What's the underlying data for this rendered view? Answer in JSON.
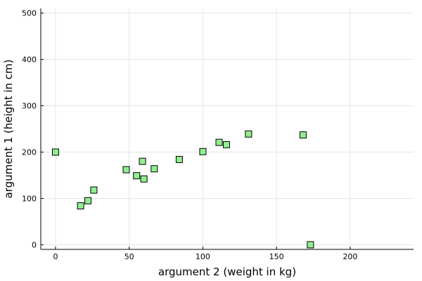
{
  "chart_data": {
    "type": "scatter",
    "xlabel": "argument 2 (weight in kg)",
    "ylabel": "argument 1 (height in cm)",
    "xlim": [
      -10,
      243
    ],
    "ylim": [
      -10,
      510
    ],
    "xticks": [
      0,
      50,
      100,
      150,
      200
    ],
    "yticks": [
      0,
      100,
      200,
      300,
      400,
      500
    ],
    "grid": true,
    "legend": "none",
    "marker": "square",
    "marker_color": "#90ee90",
    "series": [
      {
        "points": [
          {
            "x": 0,
            "y": 200
          },
          {
            "x": 17,
            "y": 84
          },
          {
            "x": 22,
            "y": 95
          },
          {
            "x": 26,
            "y": 118
          },
          {
            "x": 48,
            "y": 162
          },
          {
            "x": 55,
            "y": 149
          },
          {
            "x": 59,
            "y": 180
          },
          {
            "x": 60,
            "y": 142
          },
          {
            "x": 67,
            "y": 164
          },
          {
            "x": 84,
            "y": 184
          },
          {
            "x": 100,
            "y": 201
          },
          {
            "x": 111,
            "y": 221
          },
          {
            "x": 116,
            "y": 216
          },
          {
            "x": 131,
            "y": 239
          },
          {
            "x": 168,
            "y": 237
          },
          {
            "x": 173,
            "y": 0
          }
        ]
      }
    ]
  }
}
